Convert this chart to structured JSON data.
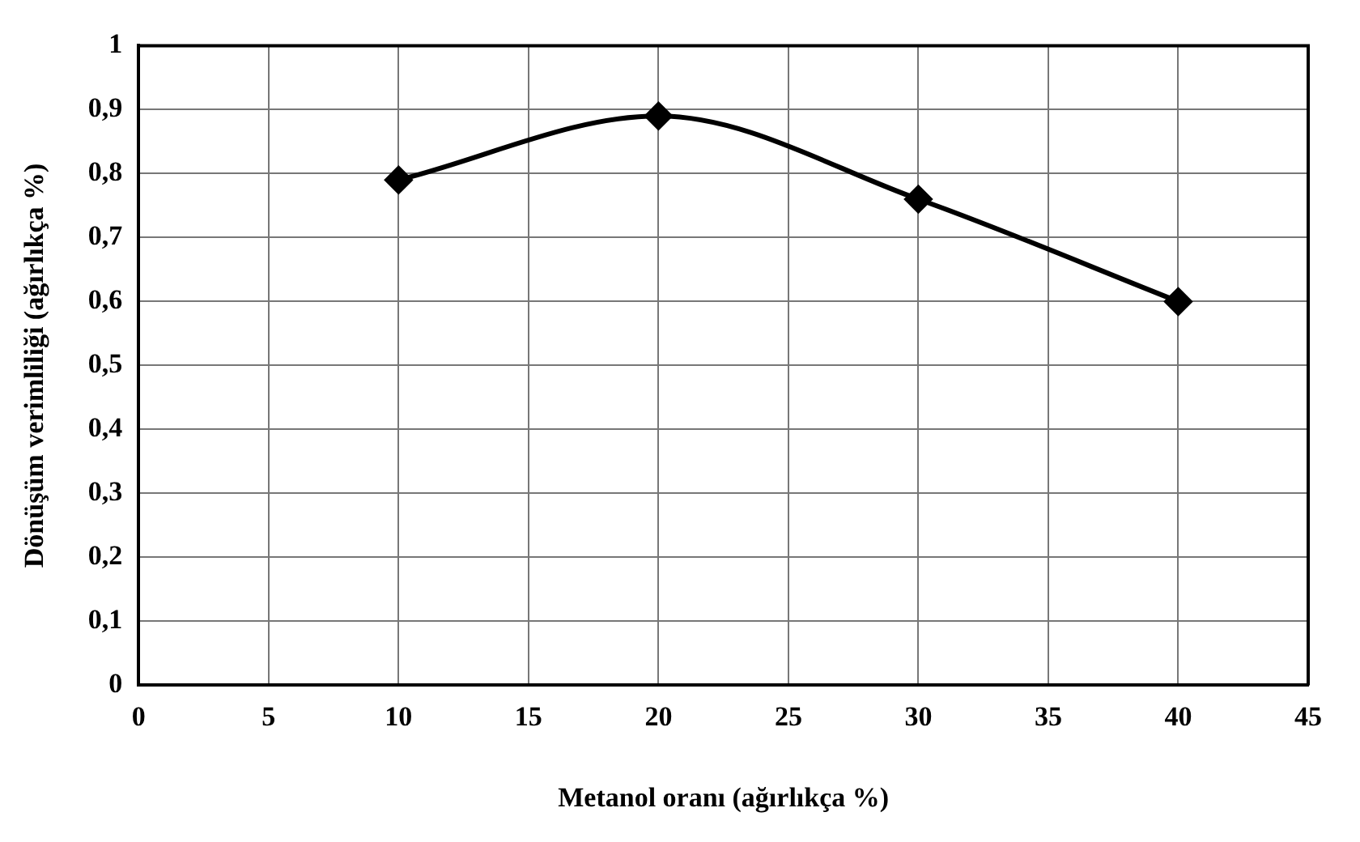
{
  "chart_data": {
    "type": "line",
    "xlabel": "Metanol oranı (ağırlıkça %)",
    "ylabel": "Dönüşüm verimliliği (ağırlıkça %)",
    "x": [
      10,
      20,
      30,
      40
    ],
    "series": [
      {
        "color": "#000000",
        "values": [
          0.79,
          0.89,
          0.76,
          0.6
        ]
      }
    ],
    "xlim": [
      0,
      45
    ],
    "xticks": [
      0,
      5,
      10,
      15,
      20,
      25,
      30,
      35,
      40,
      45
    ],
    "ylim": [
      0,
      1
    ],
    "yticks": [
      0,
      {
        "value": 0.1,
        "label": "0,1"
      },
      {
        "value": 0.2,
        "label": "0,2"
      },
      {
        "value": 0.3,
        "label": "0,3"
      },
      {
        "value": 0.4,
        "label": "0,4"
      },
      {
        "value": 0.5,
        "label": "0,5"
      },
      {
        "value": 0.6,
        "label": "0,6"
      },
      {
        "value": 0.7,
        "label": "0,7"
      },
      {
        "value": 0.8,
        "label": "0,8"
      },
      {
        "value": 0.9,
        "label": "0,9"
      },
      1
    ],
    "grid": true,
    "marker": "diamond",
    "line_style": "solid",
    "legend": false
  }
}
